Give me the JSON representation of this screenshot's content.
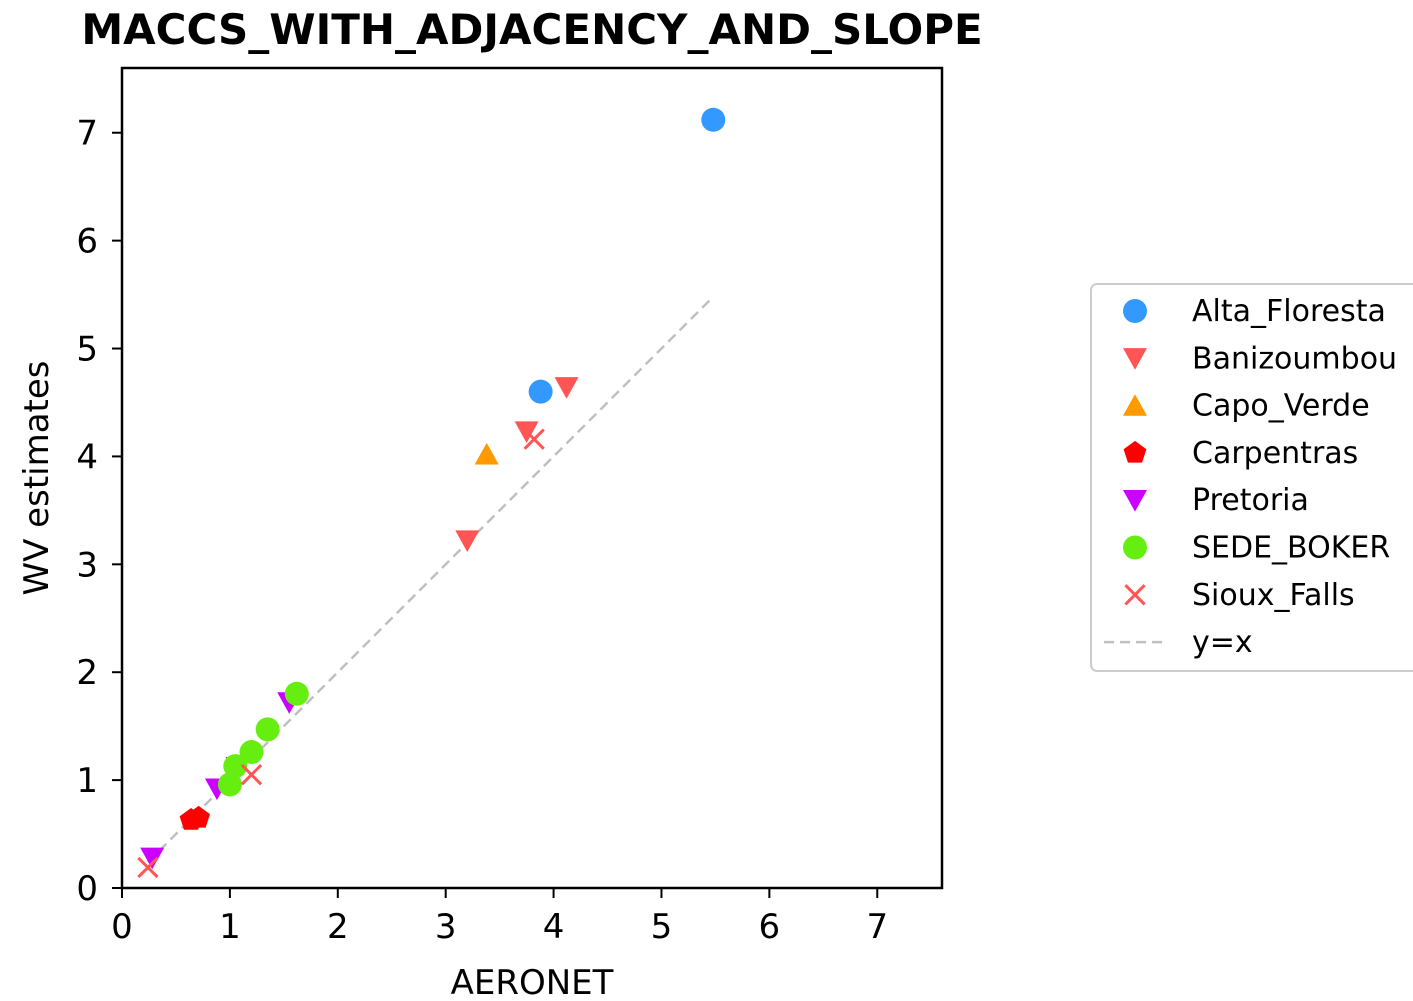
{
  "chart_data": {
    "type": "scatter",
    "title": "MACCS_WITH_ADJACENCY_AND_SLOPE",
    "xlabel": "AERONET",
    "ylabel": "WV estimates",
    "xlim": [
      0,
      7.6
    ],
    "ylim": [
      0,
      7.6
    ],
    "xticks": [
      0,
      1,
      2,
      3,
      4,
      5,
      6,
      7
    ],
    "yticks": [
      0,
      1,
      2,
      3,
      4,
      5,
      6,
      7
    ],
    "grid": false,
    "legend_placement": "right-outside",
    "series": [
      {
        "name": "Alta_Floresta",
        "marker": "circle",
        "color": "#3399ff",
        "points": [
          [
            5.48,
            7.12
          ],
          [
            3.88,
            4.6
          ]
        ]
      },
      {
        "name": "Banizoumbou",
        "marker": "triangle-down",
        "color": "#ff5555",
        "points": [
          [
            4.12,
            4.64
          ],
          [
            3.75,
            4.23
          ],
          [
            3.2,
            3.22
          ]
        ]
      },
      {
        "name": "Capo_Verde",
        "marker": "triangle-up",
        "color": "#ff9900",
        "points": [
          [
            3.38,
            4.02
          ]
        ]
      },
      {
        "name": "Carpentras",
        "marker": "pentagon",
        "color": "#ff0000",
        "points": [
          [
            0.64,
            0.63
          ],
          [
            0.71,
            0.65
          ]
        ]
      },
      {
        "name": "Pretoria",
        "marker": "triangle-down",
        "color": "#cc00ff",
        "points": [
          [
            0.28,
            0.28
          ],
          [
            0.88,
            0.92
          ],
          [
            1.07,
            1.12
          ],
          [
            1.55,
            1.72
          ]
        ]
      },
      {
        "name": "SEDE_BOKER",
        "marker": "circle",
        "color": "#66ee11",
        "points": [
          [
            1.62,
            1.8
          ],
          [
            1.35,
            1.47
          ],
          [
            1.2,
            1.26
          ],
          [
            1.05,
            1.13
          ],
          [
            1.0,
            0.96
          ]
        ]
      },
      {
        "name": "Sioux_Falls",
        "marker": "x",
        "color": "#ff5555",
        "points": [
          [
            3.82,
            4.16
          ],
          [
            1.2,
            1.05
          ],
          [
            0.24,
            0.19
          ]
        ]
      }
    ],
    "reference_line": {
      "name": "y=x",
      "style": "dashed",
      "color": "#c0c0c0",
      "points": [
        [
          0.24,
          0.24
        ],
        [
          5.48,
          5.48
        ]
      ]
    }
  }
}
